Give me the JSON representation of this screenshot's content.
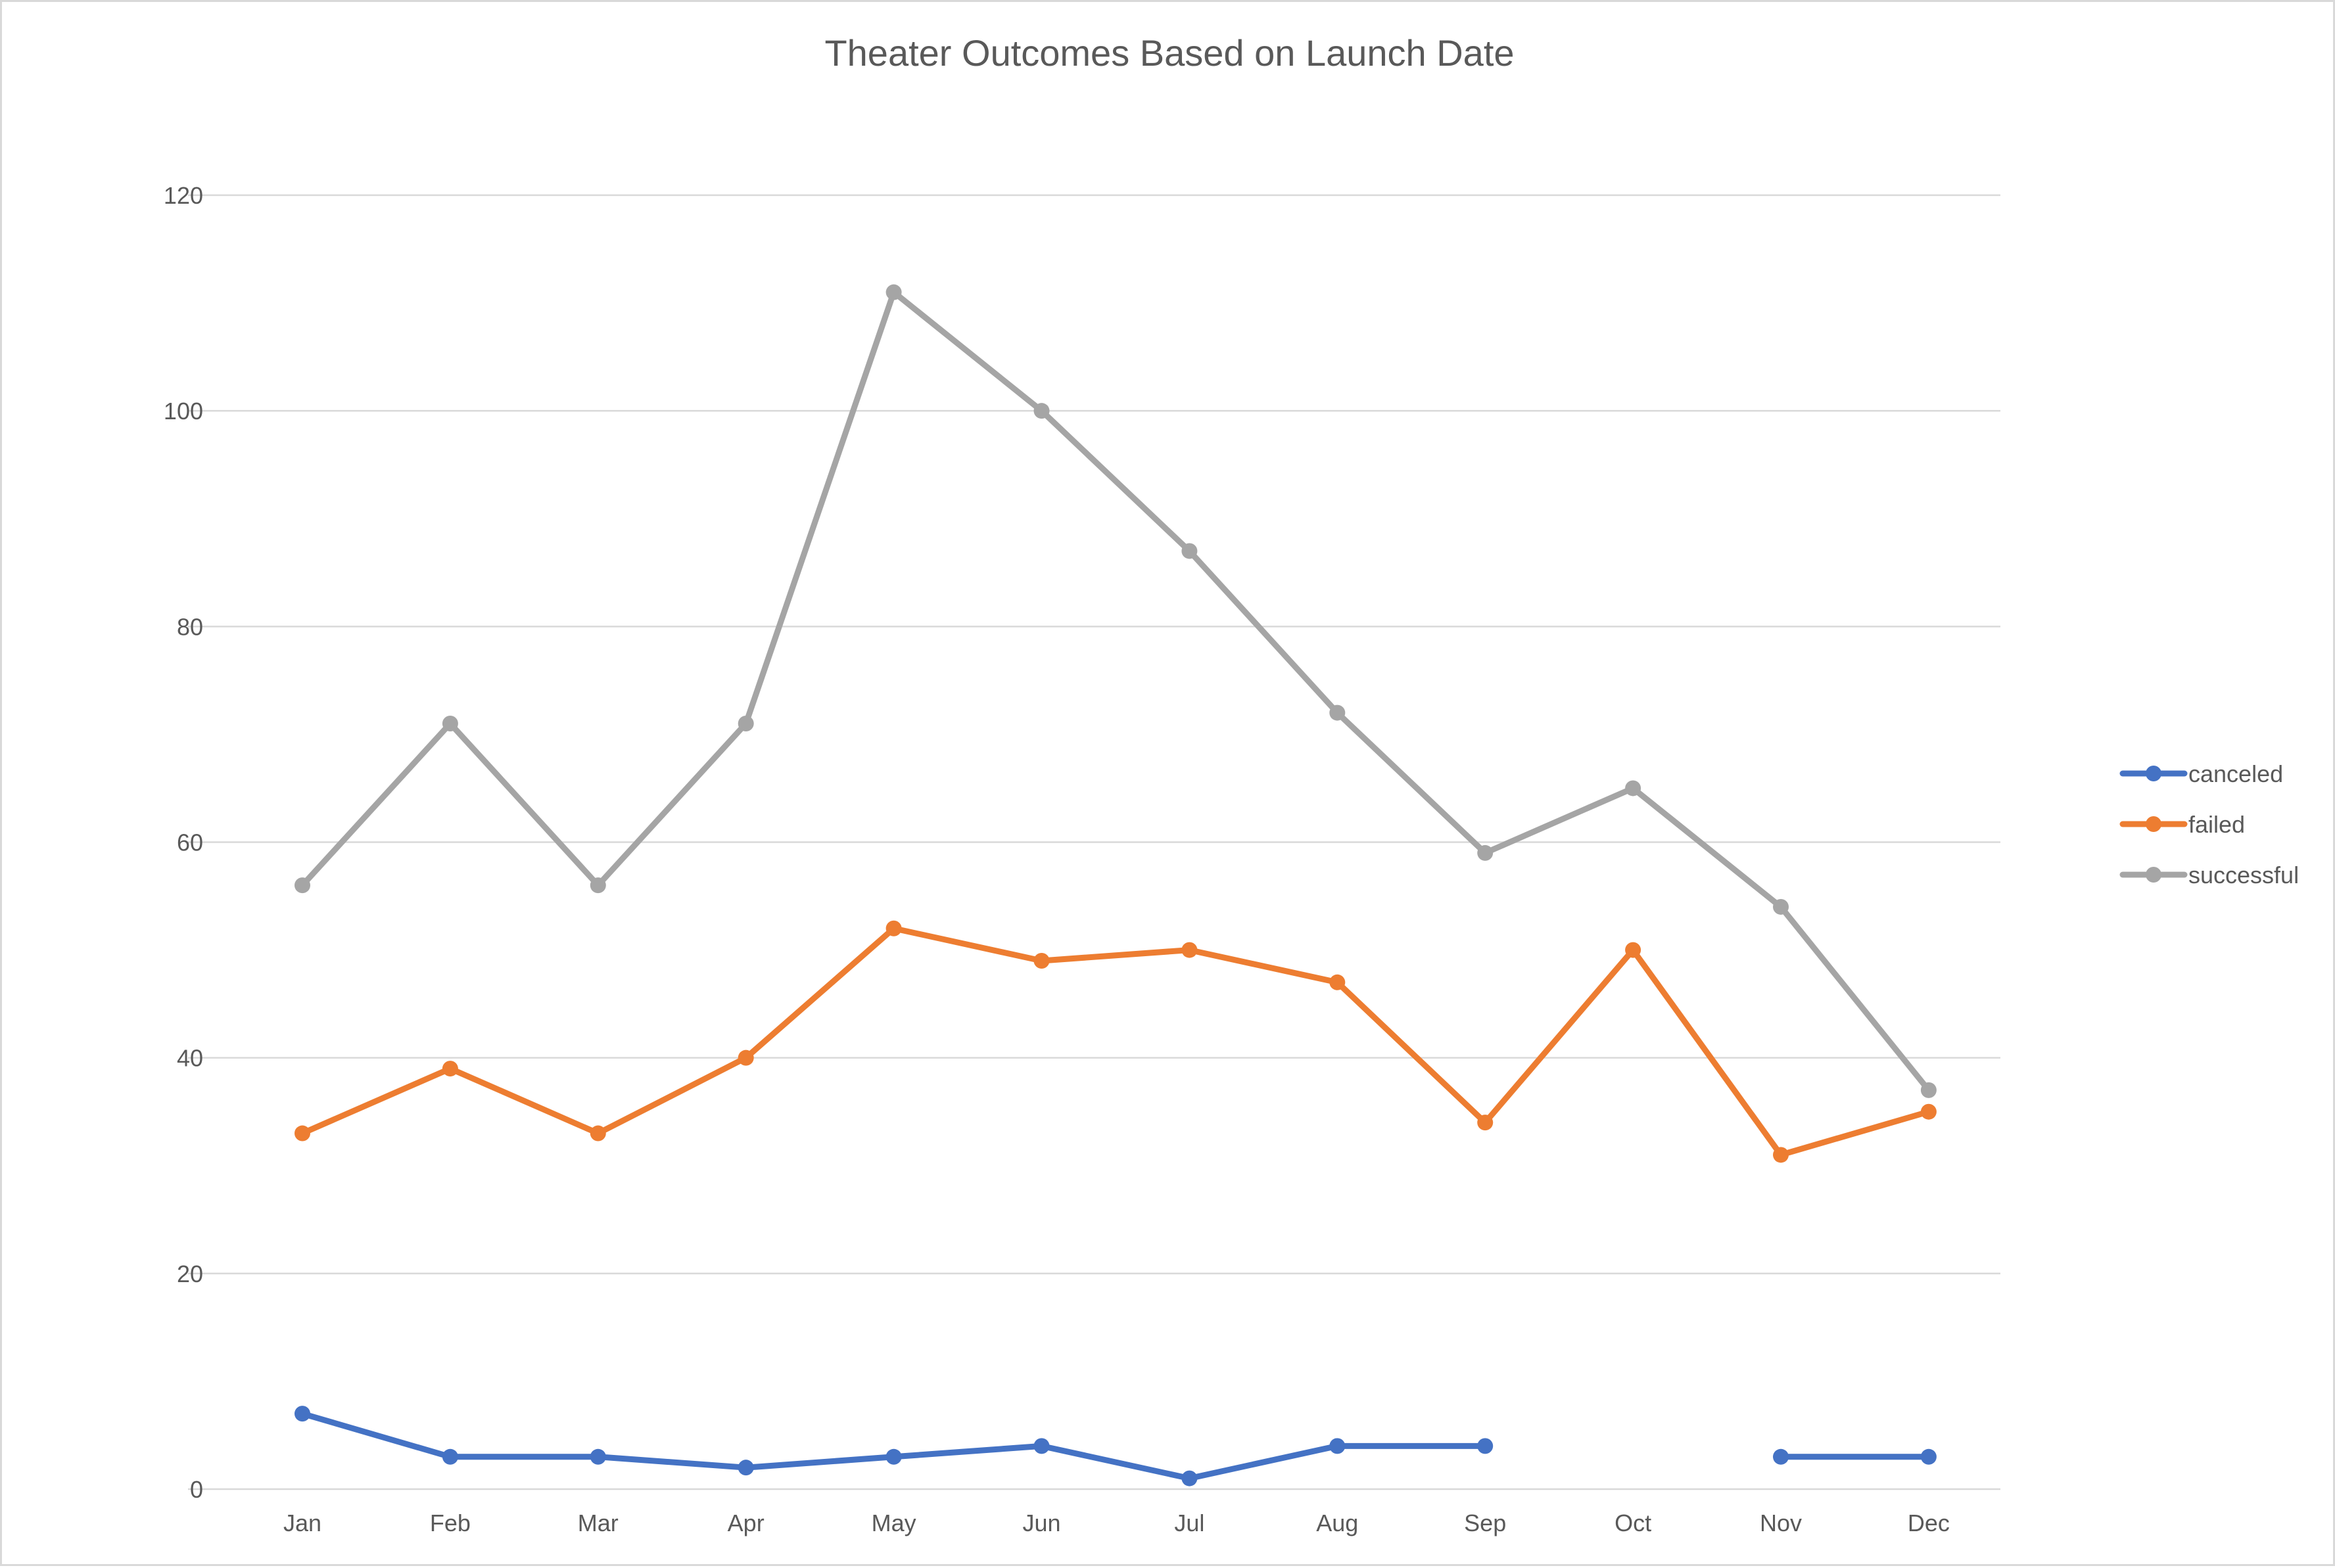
{
  "chart_data": {
    "type": "line",
    "title": "Theater Outcomes Based on Launch Date",
    "xlabel": "",
    "ylabel": "",
    "categories": [
      "Jan",
      "Feb",
      "Mar",
      "Apr",
      "May",
      "Jun",
      "Jul",
      "Aug",
      "Sep",
      "Oct",
      "Nov",
      "Dec"
    ],
    "ylim": [
      0,
      120
    ],
    "yticks": [
      0,
      20,
      40,
      60,
      80,
      100,
      120
    ],
    "grid": true,
    "legend_position": "right",
    "markers": true,
    "series": [
      {
        "name": "canceled",
        "color": "#4472c4",
        "values": [
          7,
          3,
          3,
          2,
          3,
          4,
          1,
          4,
          4,
          null,
          3,
          3
        ]
      },
      {
        "name": "failed",
        "color": "#ed7d31",
        "values": [
          33,
          39,
          33,
          40,
          52,
          49,
          50,
          47,
          34,
          50,
          31,
          35
        ]
      },
      {
        "name": "successful",
        "color": "#a5a5a5",
        "values": [
          56,
          71,
          56,
          71,
          111,
          100,
          87,
          72,
          59,
          65,
          54,
          37
        ]
      }
    ]
  }
}
